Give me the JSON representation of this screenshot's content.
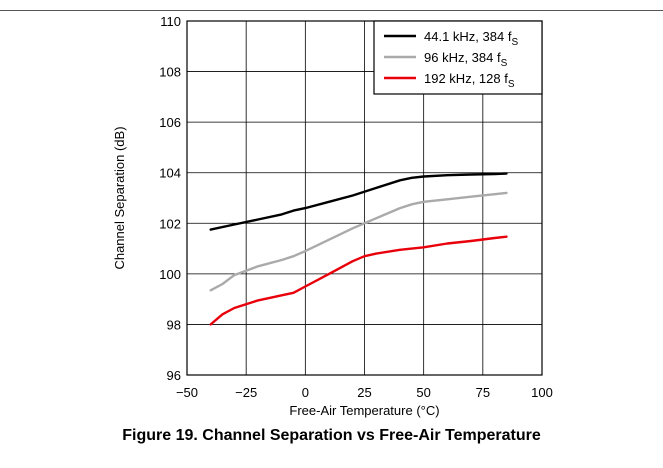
{
  "caption": "Figure 19. Channel Separation vs Free-Air Temperature",
  "chart_data": {
    "type": "line",
    "title": "",
    "xlabel": "Free-Air Temperature (°C)",
    "ylabel": "Channel Separation (dB)",
    "xlim": [
      -50,
      100
    ],
    "ylim": [
      96,
      110
    ],
    "x_ticks": [
      -50,
      -25,
      0,
      25,
      50,
      75,
      100
    ],
    "x_tick_labels": [
      "−50",
      "−25",
      "0",
      "25",
      "50",
      "75",
      "100"
    ],
    "y_ticks": [
      96,
      98,
      100,
      102,
      104,
      106,
      108,
      110
    ],
    "y_tick_labels": [
      "96",
      "98",
      "100",
      "102",
      "104",
      "106",
      "108",
      "110"
    ],
    "grid": true,
    "legend_position": "top-right",
    "series": [
      {
        "name": "44.1 kHz, 384 f",
        "name_sub": "S",
        "color": "#000000",
        "x": [
          -40,
          -30,
          -20,
          -10,
          -5,
          0,
          10,
          20,
          30,
          40,
          45,
          50,
          60,
          70,
          80,
          85
        ],
        "y": [
          101.75,
          101.95,
          102.15,
          102.35,
          102.5,
          102.6,
          102.85,
          103.1,
          103.4,
          103.7,
          103.8,
          103.85,
          103.9,
          103.93,
          103.95,
          103.97
        ]
      },
      {
        "name": "96  kHz, 384 f",
        "name_sub": "S",
        "color": "#aaaaaa",
        "x": [
          -40,
          -35,
          -30,
          -20,
          -10,
          -5,
          0,
          10,
          20,
          30,
          40,
          45,
          50,
          60,
          70,
          80,
          85
        ],
        "y": [
          99.35,
          99.6,
          99.95,
          100.3,
          100.55,
          100.7,
          100.9,
          101.35,
          101.8,
          102.2,
          102.6,
          102.75,
          102.85,
          102.95,
          103.05,
          103.15,
          103.2
        ]
      },
      {
        "name": "192 kHz, 128 f",
        "name_sub": "S",
        "color": "#e8000b",
        "x": [
          -40,
          -35,
          -30,
          -20,
          -10,
          -5,
          0,
          10,
          20,
          25,
          30,
          40,
          50,
          60,
          70,
          80,
          85
        ],
        "y": [
          98.0,
          98.4,
          98.65,
          98.95,
          99.15,
          99.25,
          99.5,
          100.0,
          100.5,
          100.7,
          100.8,
          100.95,
          101.05,
          101.2,
          101.3,
          101.42,
          101.47
        ]
      }
    ]
  }
}
